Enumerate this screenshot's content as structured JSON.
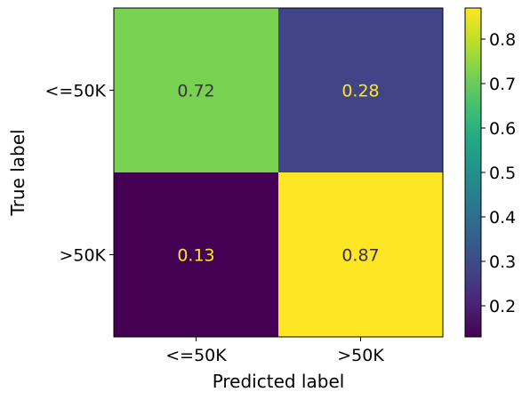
{
  "chart_data": {
    "type": "heatmap",
    "title": "",
    "xlabel": "Predicted label",
    "ylabel": "True label",
    "x_categories": [
      "<=50K",
      ">50K"
    ],
    "y_categories": [
      "<=50K",
      ">50K"
    ],
    "values": [
      [
        0.72,
        0.28
      ],
      [
        0.13,
        0.87
      ]
    ],
    "value_labels": [
      [
        "0.72",
        "0.28"
      ],
      [
        "0.13",
        "0.87"
      ]
    ],
    "colormap": "viridis",
    "colorbar": {
      "range": [
        0.13,
        0.87
      ],
      "ticks": [
        0.2,
        0.3,
        0.4,
        0.5,
        0.6,
        0.7,
        0.8
      ],
      "tick_labels": [
        "0.2",
        "0.3",
        "0.4",
        "0.5",
        "0.6",
        "0.7",
        "0.8"
      ]
    },
    "text_colors": {
      "on_dark": "#fde725",
      "on_light": "#3b2f47"
    },
    "grid": false
  }
}
